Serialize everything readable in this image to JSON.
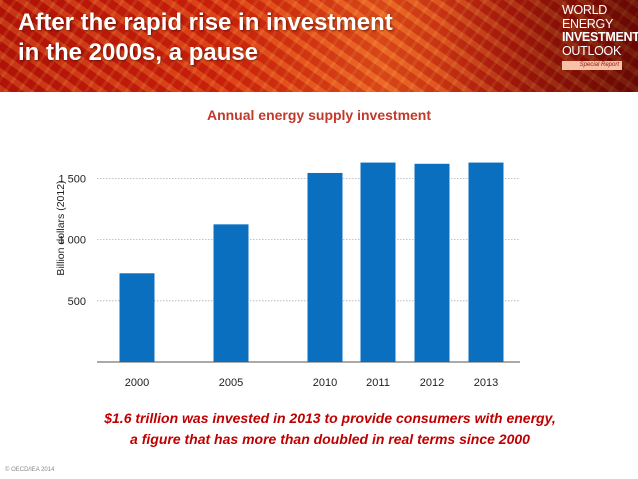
{
  "header": {
    "title_line1": "After the rapid rise in investment",
    "title_line2": "in the 2000s, a pause",
    "logo": {
      "line1": "WORLD",
      "line2": "ENERGY",
      "line3": "INVESTMENT",
      "line4": "OUTLOOK",
      "tag": "Special Report"
    }
  },
  "chart_data": {
    "type": "bar",
    "title": "Annual energy supply investment",
    "ylabel": "Billion dollars (2012)",
    "xlabel": "",
    "categories": [
      "2000",
      "2005",
      "2010",
      "2011",
      "2012",
      "2013"
    ],
    "values": [
      725,
      1125,
      1545,
      1630,
      1620,
      1630
    ],
    "yticks": [
      500,
      1000,
      1500
    ],
    "ytick_labels": [
      "500",
      "1 000",
      "1 500"
    ],
    "ylim": [
      0,
      1700
    ],
    "grid": true,
    "color": "#0b6fc0"
  },
  "caption": {
    "line1": "$1.6 trillion was invested in 2013 to provide consumers with energy,",
    "line2": "a figure that has more than doubled in real terms since 2000"
  },
  "footer": {
    "copyright": "© OECD/IEA 2014"
  }
}
